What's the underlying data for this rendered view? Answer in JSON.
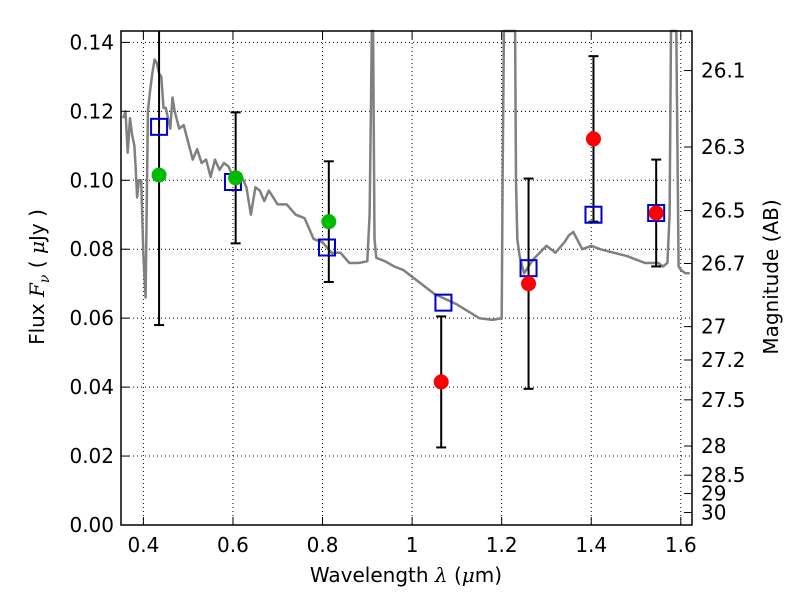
{
  "chart_data": {
    "type": "scatter",
    "xlabel": "Wavelength",
    "xlabel_symbol": "λ",
    "xlabel_unit_prefix": "(",
    "xlabel_unit_mu": "μ",
    "xlabel_unit_suffix": "m)",
    "ylabel": "Flux",
    "ylabel_symbol": "F",
    "ylabel_symbol_sub": "ν",
    "ylabel_unit_prefix": "(",
    "ylabel_unit_mu": "μ",
    "ylabel_unit_suffix": "Jy )",
    "y2label": "Magnitude (AB)",
    "xlim": [
      0.35,
      1.625
    ],
    "ylim": [
      0.0,
      0.1433
    ],
    "grid": true,
    "x_ticks": [
      0.4,
      0.6,
      0.8,
      1.0,
      1.2,
      1.4,
      1.6
    ],
    "x_tick_labels": [
      "0.4",
      "0.6",
      "0.8",
      "1",
      "1.2",
      "1.4",
      "1.6"
    ],
    "y_ticks": [
      0.0,
      0.02,
      0.04,
      0.06,
      0.08,
      0.1,
      0.12,
      0.14
    ],
    "y_tick_labels": [
      "0.00",
      "0.02",
      "0.04",
      "0.06",
      "0.08",
      "0.10",
      "0.12",
      "0.14"
    ],
    "mag_ticks": [
      26.1,
      26.3,
      26.5,
      26.7,
      27,
      27.2,
      27.5,
      28,
      28.5,
      29,
      30
    ],
    "mag_tick_labels": [
      "26.1",
      "26.3",
      "26.5",
      "26.7",
      "27",
      "27.2",
      "27.5",
      "28",
      "28.5",
      "29",
      "30"
    ],
    "series": [
      {
        "name": "model spectrum",
        "style": "line",
        "color": "#808080",
        "x": [
          0.355,
          0.36,
          0.365,
          0.37,
          0.375,
          0.38,
          0.383,
          0.386,
          0.39,
          0.395,
          0.4,
          0.405,
          0.41,
          0.415,
          0.42,
          0.425,
          0.43,
          0.435,
          0.44,
          0.445,
          0.45,
          0.455,
          0.46,
          0.465,
          0.47,
          0.48,
          0.49,
          0.5,
          0.51,
          0.52,
          0.53,
          0.54,
          0.55,
          0.56,
          0.57,
          0.58,
          0.59,
          0.6,
          0.61,
          0.62,
          0.63,
          0.64,
          0.65,
          0.66,
          0.67,
          0.68,
          0.7,
          0.72,
          0.74,
          0.76,
          0.78,
          0.8,
          0.82,
          0.84,
          0.86,
          0.88,
          0.9,
          0.905,
          0.908,
          0.91,
          0.913,
          0.916,
          0.92,
          0.94,
          0.96,
          0.98,
          1.0,
          1.05,
          1.1,
          1.15,
          1.18,
          1.2,
          1.202,
          1.205,
          1.21,
          1.215,
          1.22,
          1.225,
          1.23,
          1.232,
          1.235,
          1.24,
          1.25,
          1.27,
          1.3,
          1.32,
          1.34,
          1.35,
          1.36,
          1.38,
          1.4,
          1.42,
          1.45,
          1.48,
          1.5,
          1.52,
          1.55,
          1.56,
          1.57,
          1.575,
          1.578,
          1.58,
          1.585,
          1.59,
          1.595,
          1.6,
          1.61,
          1.62
        ],
        "y": [
          0.118,
          0.12,
          0.108,
          0.118,
          0.113,
          0.11,
          0.103,
          0.095,
          0.1,
          0.1,
          0.078,
          0.066,
          0.12,
          0.126,
          0.131,
          0.135,
          0.134,
          0.131,
          0.13,
          0.121,
          0.121,
          0.118,
          0.115,
          0.124,
          0.12,
          0.115,
          0.116,
          0.111,
          0.106,
          0.109,
          0.105,
          0.106,
          0.101,
          0.106,
          0.103,
          0.105,
          0.104,
          0.101,
          0.1,
          0.101,
          0.098,
          0.09,
          0.098,
          0.097,
          0.094,
          0.097,
          0.093,
          0.093,
          0.09,
          0.089,
          0.083,
          0.082,
          0.079,
          0.079,
          0.076,
          0.076,
          0.0765,
          0.09,
          0.12,
          0.15,
          0.15,
          0.083,
          0.0775,
          0.0765,
          0.075,
          0.074,
          0.072,
          0.067,
          0.064,
          0.06,
          0.0595,
          0.06,
          0.1,
          0.15,
          0.15,
          0.15,
          0.15,
          0.15,
          0.15,
          0.1,
          0.083,
          0.078,
          0.073,
          0.077,
          0.081,
          0.079,
          0.082,
          0.084,
          0.085,
          0.08,
          0.081,
          0.08,
          0.079,
          0.078,
          0.077,
          0.076,
          0.076,
          0.075,
          0.076,
          0.09,
          0.15,
          0.15,
          0.15,
          0.15,
          0.075,
          0.074,
          0.073,
          0.073
        ]
      },
      {
        "name": "observed photometry (green)",
        "style": "marker-circle",
        "color": "#00bb00",
        "x": [
          0.435,
          0.606,
          0.814
        ],
        "y": [
          0.1015,
          0.1007,
          0.088
        ],
        "yerr": [
          0.0435,
          0.019,
          0.0175
        ]
      },
      {
        "name": "observed photometry (red)",
        "style": "marker-circle",
        "color": "#ff0000",
        "x": [
          1.065,
          1.26,
          1.405,
          1.545
        ],
        "y": [
          0.0415,
          0.07,
          0.112,
          0.0905
        ],
        "yerr": [
          0.019,
          0.0305,
          0.024,
          0.0155
        ]
      },
      {
        "name": "model photometry",
        "style": "marker-square-open",
        "color": "#0000cc",
        "x": [
          0.435,
          0.6,
          0.81,
          1.07,
          1.26,
          1.405,
          1.545
        ],
        "y": [
          0.1155,
          0.0995,
          0.0805,
          0.0645,
          0.0745,
          0.09,
          0.0905
        ]
      }
    ]
  }
}
